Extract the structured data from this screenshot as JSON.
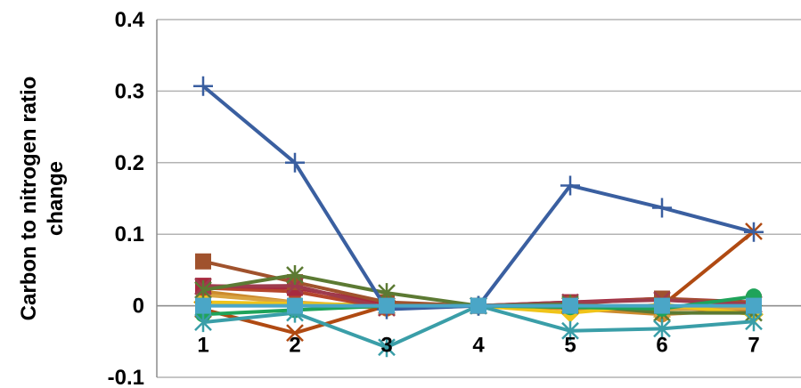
{
  "chart_data": {
    "type": "line",
    "title": "",
    "xlabel": "",
    "ylabel_lines": [
      "Carbon to nitrogen ratio",
      "change"
    ],
    "x": [
      1,
      2,
      3,
      4,
      5,
      6,
      7
    ],
    "x_tick_labels": [
      "1",
      "2",
      "3",
      "4",
      "5",
      "6",
      "7"
    ],
    "ylim": [
      -0.1,
      0.4
    ],
    "y_ticks": [
      -0.1,
      0,
      0.1,
      0.2,
      0.3,
      0.4
    ],
    "y_tick_labels": [
      "-0.1",
      "0",
      "0.1",
      "0.2",
      "0.3",
      "0.4"
    ],
    "grid": true,
    "legend": "none",
    "series": [
      {
        "color": "#cc8a2e",
        "marker": "circle",
        "values": [
          0.02,
          0.005,
          -0.004,
          0,
          -0.004,
          -0.012,
          -0.005
        ]
      },
      {
        "color": "#d9a441",
        "marker": "triangle",
        "values": [
          0.015,
          0.005,
          -0.002,
          0,
          0.002,
          -0.005,
          -0.003
        ]
      },
      {
        "color": "#f0c419",
        "marker": "diamond",
        "values": [
          0.005,
          0.003,
          0.001,
          0,
          -0.01,
          0.002,
          -0.012
        ]
      },
      {
        "color": "#b5462c",
        "marker": "circle",
        "values": [
          0.025,
          0.02,
          -0.003,
          0,
          0.004,
          0.01,
          0.003
        ]
      },
      {
        "color": "#b04a12",
        "marker": "x",
        "values": [
          -0.005,
          -0.038,
          0.0,
          0,
          0.0,
          0.0,
          0.104
        ]
      },
      {
        "color": "#a8293f",
        "marker": "square",
        "values": [
          0.028,
          0.025,
          0.003,
          0,
          0.005,
          0.01,
          0.005
        ]
      },
      {
        "color": "#a0522d",
        "marker": "square",
        "values": [
          0.062,
          0.033,
          0.005,
          0,
          0.003,
          0.01,
          0.004
        ]
      },
      {
        "color": "#9e3b4d",
        "marker": "x",
        "values": [
          0.027,
          0.028,
          -0.003,
          0,
          0.005,
          0.008,
          0.002
        ]
      },
      {
        "color": "#5c7a33",
        "marker": "star",
        "values": [
          0.022,
          0.043,
          0.018,
          0,
          0.002,
          -0.01,
          -0.01
        ]
      },
      {
        "color": "#1fa35a",
        "marker": "circle",
        "values": [
          -0.012,
          -0.006,
          0.0,
          0,
          -0.002,
          -0.004,
          0.013
        ]
      },
      {
        "color": "#3a9ea8",
        "marker": "star",
        "values": [
          -0.023,
          -0.01,
          -0.058,
          0,
          -0.035,
          -0.032,
          -0.022
        ]
      },
      {
        "color": "#3a5fa0",
        "marker": "plus",
        "values": [
          0.307,
          0.2,
          -0.005,
          0,
          0.168,
          0.137,
          0.103
        ]
      },
      {
        "color": "#4aa6c7",
        "marker": "square",
        "values": [
          0.0,
          0.0,
          0.0,
          0,
          0.0,
          0.0,
          0.0
        ]
      }
    ]
  }
}
